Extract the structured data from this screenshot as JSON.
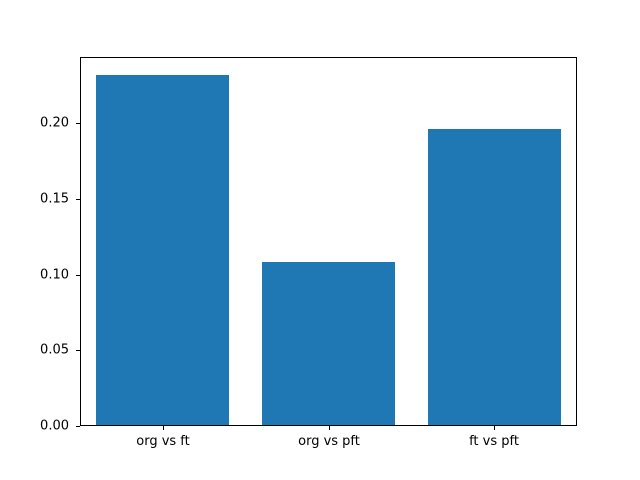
{
  "chart_data": {
    "type": "bar",
    "categories": [
      "org vs ft",
      "org vs pft",
      "ft vs pft"
    ],
    "values": [
      0.232,
      0.108,
      0.196
    ],
    "title": "",
    "xlabel": "",
    "ylabel": "",
    "ylim": [
      0,
      0.2436
    ],
    "yticks": [
      {
        "value": 0.0,
        "label": "0.00"
      },
      {
        "value": 0.05,
        "label": "0.05"
      },
      {
        "value": 0.1,
        "label": "0.10"
      },
      {
        "value": 0.15,
        "label": "0.15"
      },
      {
        "value": 0.2,
        "label": "0.20"
      }
    ],
    "grid": false,
    "legend": null,
    "colors": {
      "bar": "#1f77b4",
      "axis": "#000000",
      "background": "#ffffff",
      "text": "#000000"
    }
  }
}
